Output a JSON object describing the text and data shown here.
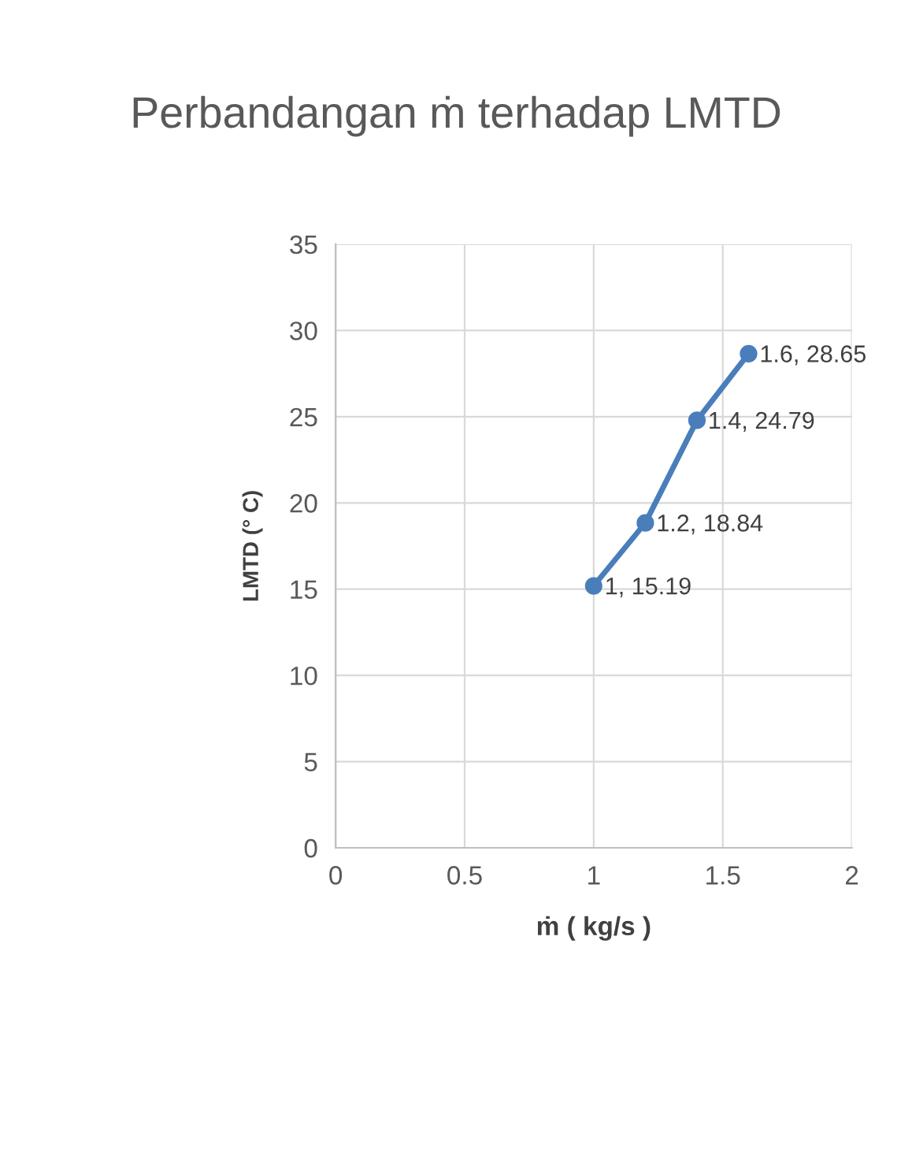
{
  "chart_data": {
    "type": "line",
    "title": "Perbandangan ṁ terhadap LMTD",
    "xlabel": "ṁ ( kg/s )",
    "ylabel": "LMTD (° C)",
    "x": [
      1,
      1.2,
      1.4,
      1.6
    ],
    "series": [
      {
        "color": "#4a7ebb",
        "values": [
          15.19,
          18.84,
          24.79,
          28.65
        ],
        "value_labels": [
          "1, 15.19",
          "1.2, 18.84",
          "1.4, 24.79",
          "1.6, 28.65"
        ]
      }
    ],
    "xlim": [
      0,
      2
    ],
    "xticks": [
      0,
      0.5,
      1,
      1.5,
      2
    ],
    "ylim": [
      0,
      35
    ],
    "yticks": [
      0,
      5,
      10,
      15,
      20,
      25,
      30,
      35
    ],
    "grid": true,
    "marker": "circle",
    "line_style": "solid"
  }
}
